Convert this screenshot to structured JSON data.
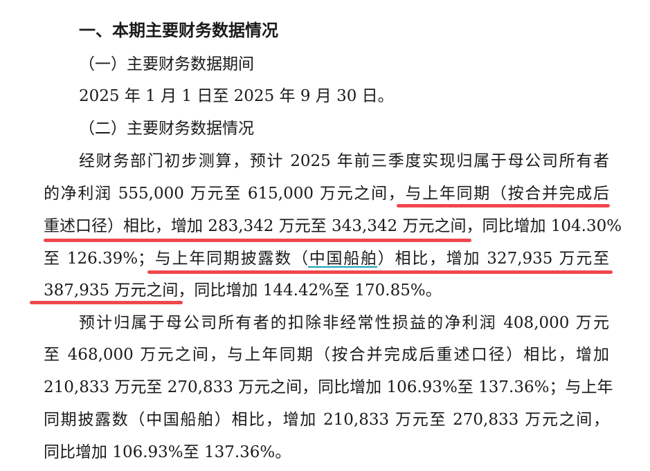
{
  "heading": "一、本期主要财务数据情况",
  "sub1": "（一）主要财务数据期间",
  "period": "2025 年 1 月 1 日至 2025 年 9 月 30 日。",
  "sub2": "（二）主要财务数据情况",
  "para1": [
    "经财务部门初步测算，预计 2025 年前三季度实现归属于母公司所有者",
    "的净利润 555,000 万元至 615,000 万元之间，与上年同期（按合并完成后",
    "重述口径）相比，增加 283,342 万元至 343,342 万元之间，同比增加 104.30%",
    "至 126.39%；与上年同期披露数（中国船舶）相比，增加 327,935 万元至",
    "387,935 万元之间，同比增加 144.42%至 170.85%。"
  ],
  "para2": [
    "预计归属于母公司所有者的扣除非经常性损益的净利润 408,000 万元",
    "至 468,000 万元之间，与上年同期（按合并完成后重述口径）相比，增加",
    "210,833 万元至 270,833 万元之间，同比增加 106.93%至 137.36%；与上年",
    "同期披露数（中国船舶）相比，增加 210,833 万元至 270,833 万元之间，",
    "同比增加 106.93%至 137.36%。"
  ],
  "colors": {
    "highlight_underline": "#f0474f",
    "link_underline": "#1aa3b8"
  }
}
